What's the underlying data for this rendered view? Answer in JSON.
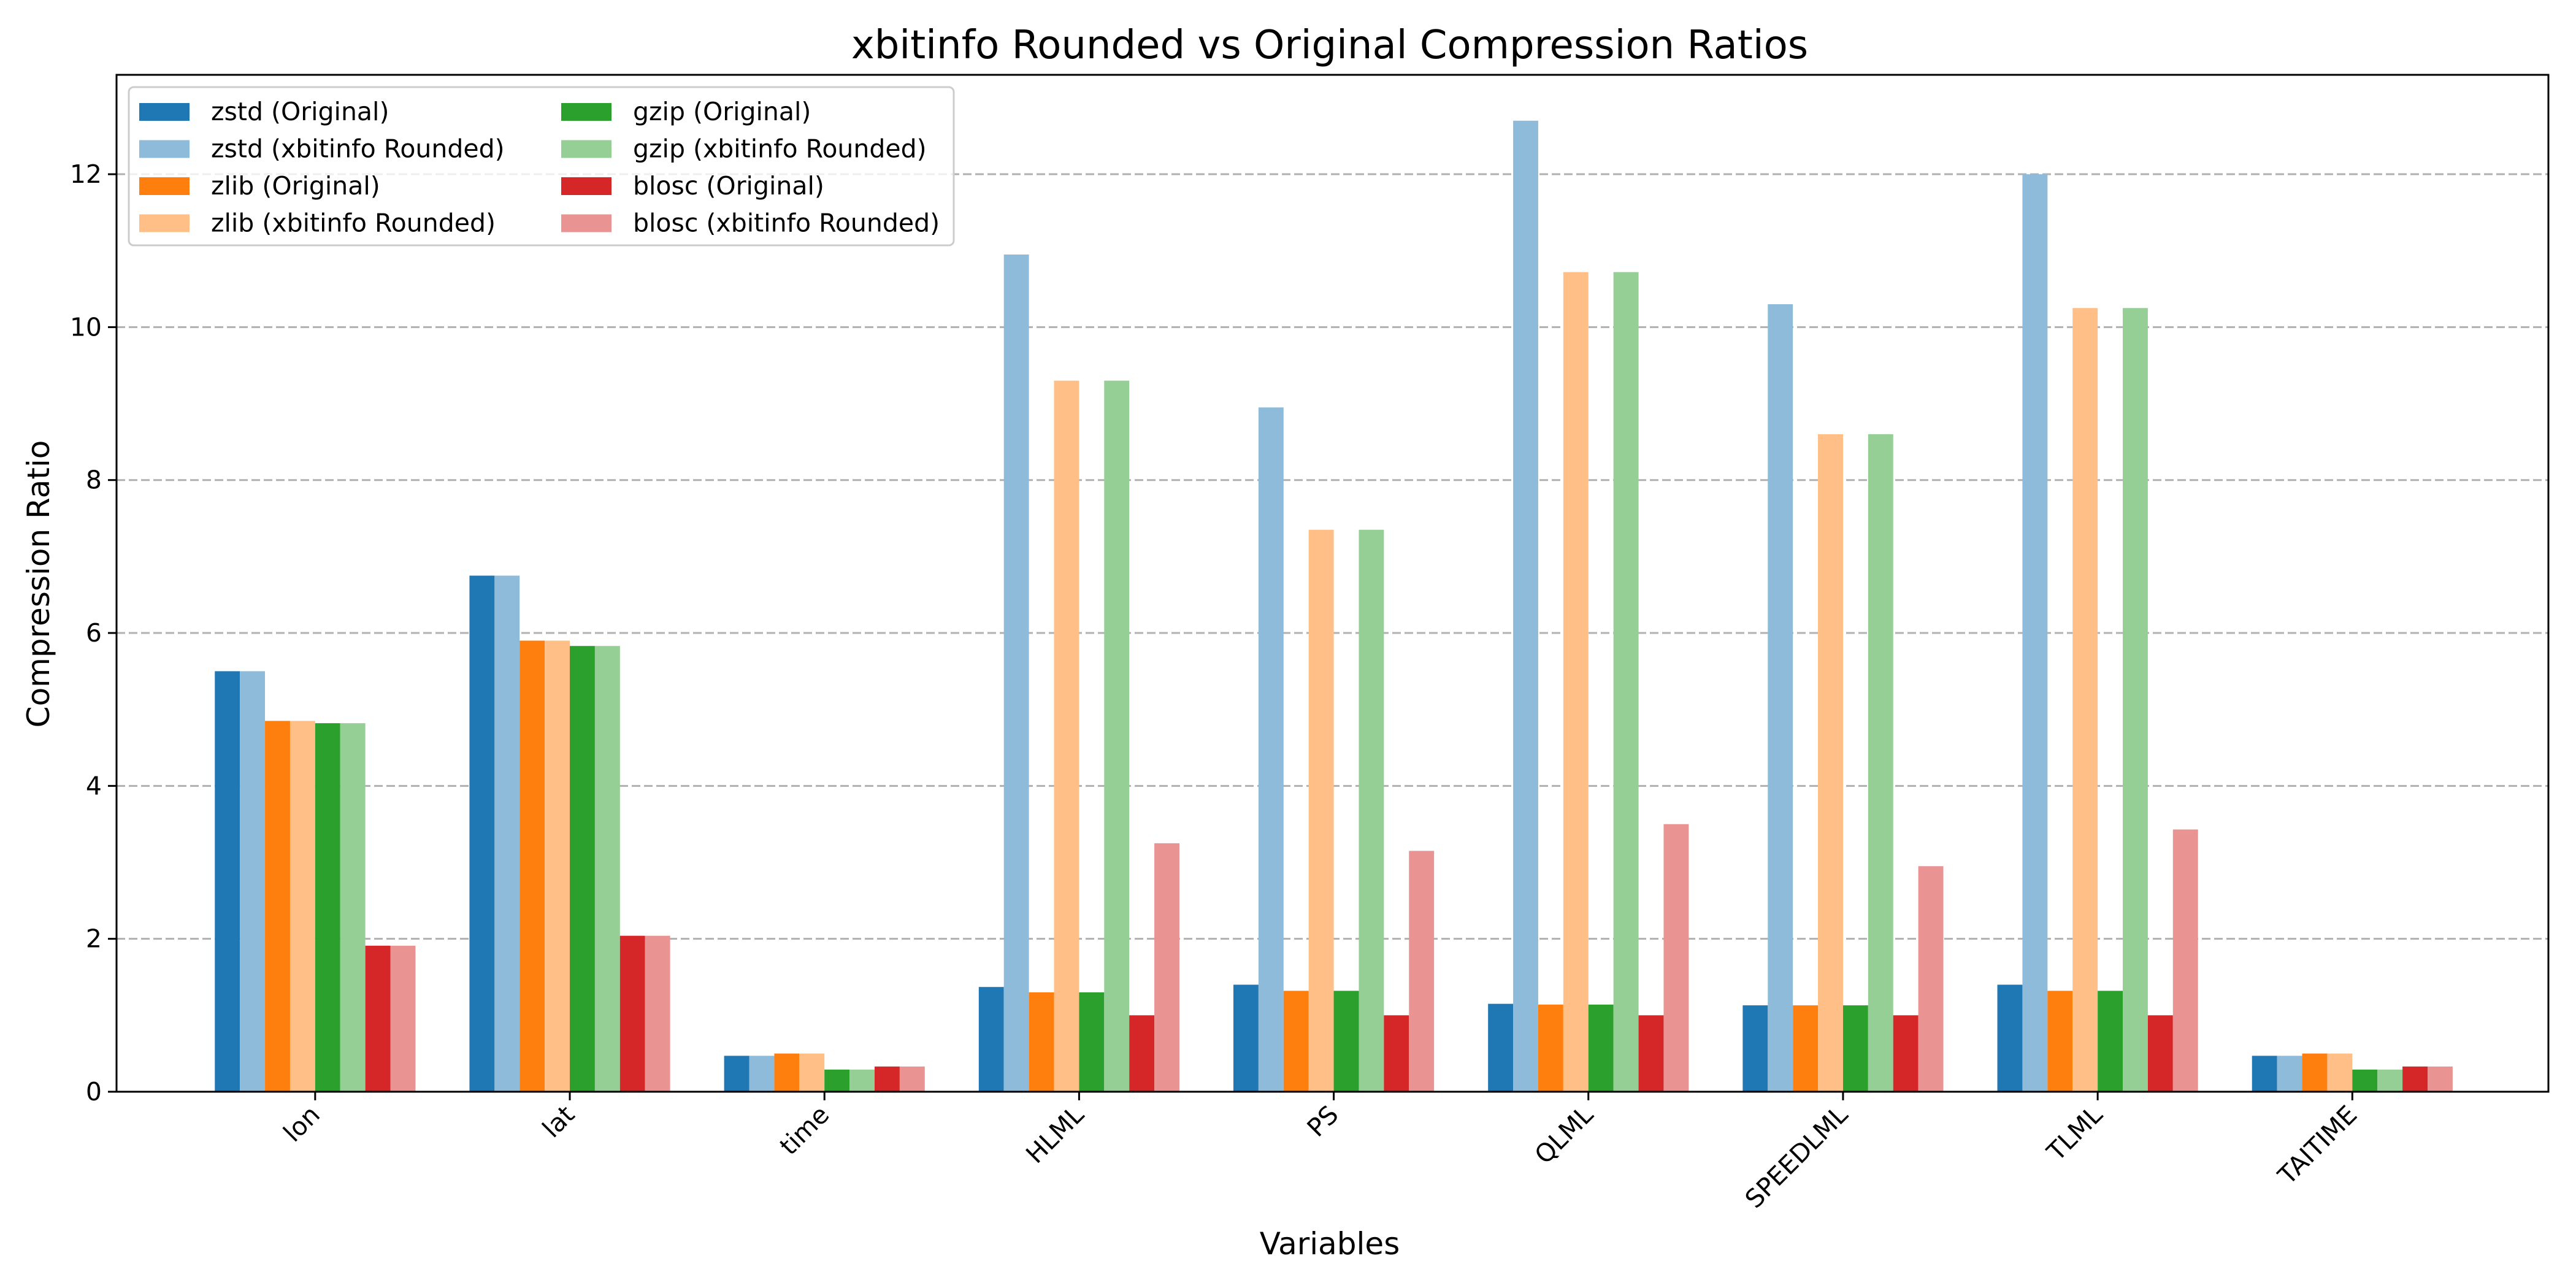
{
  "chart_data": {
    "type": "bar",
    "title": "xbitinfo Rounded vs Original Compression Ratios",
    "xlabel": "Variables",
    "ylabel": "Compression Ratio",
    "ylim": [
      0,
      13.3
    ],
    "yticks": [
      0,
      2,
      4,
      6,
      8,
      10,
      12
    ],
    "grid": "y-dashed",
    "legend_position": "top-left",
    "categories": [
      "lon",
      "lat",
      "time",
      "HLML",
      "PS",
      "QLML",
      "SPEEDLML",
      "TLML",
      "TAITIME"
    ],
    "series": [
      {
        "name": "zstd (Original)",
        "color": "#1f77b4",
        "values": [
          5.5,
          6.75,
          0.47,
          1.37,
          1.4,
          1.15,
          1.13,
          1.4,
          0.47
        ]
      },
      {
        "name": "zstd (xbitinfo Rounded)",
        "color": "#8fbbda",
        "values": [
          5.5,
          6.75,
          0.47,
          10.95,
          8.95,
          12.7,
          10.3,
          12.0,
          0.47
        ]
      },
      {
        "name": "zlib (Original)",
        "color": "#ff7f0e",
        "values": [
          4.85,
          5.9,
          0.5,
          1.3,
          1.32,
          1.14,
          1.13,
          1.32,
          0.5
        ]
      },
      {
        "name": "zlib (xbitinfo Rounded)",
        "color": "#ffbf86",
        "values": [
          4.85,
          5.9,
          0.5,
          9.3,
          7.35,
          10.72,
          8.6,
          10.25,
          0.5
        ]
      },
      {
        "name": "gzip (Original)",
        "color": "#2ca02c",
        "values": [
          4.82,
          5.83,
          0.29,
          1.3,
          1.32,
          1.14,
          1.13,
          1.32,
          0.29
        ]
      },
      {
        "name": "gzip (xbitinfo Rounded)",
        "color": "#95cf95",
        "values": [
          4.82,
          5.83,
          0.29,
          9.3,
          7.35,
          10.72,
          8.6,
          10.25,
          0.29
        ]
      },
      {
        "name": "blosc (Original)",
        "color": "#d62728",
        "values": [
          1.91,
          2.04,
          0.33,
          1.0,
          1.0,
          1.0,
          1.0,
          1.0,
          0.33
        ]
      },
      {
        "name": "blosc (xbitinfo Rounded)",
        "color": "#ea9393",
        "values": [
          1.91,
          2.04,
          0.33,
          3.25,
          3.15,
          3.5,
          2.95,
          3.43,
          0.33
        ]
      }
    ]
  }
}
